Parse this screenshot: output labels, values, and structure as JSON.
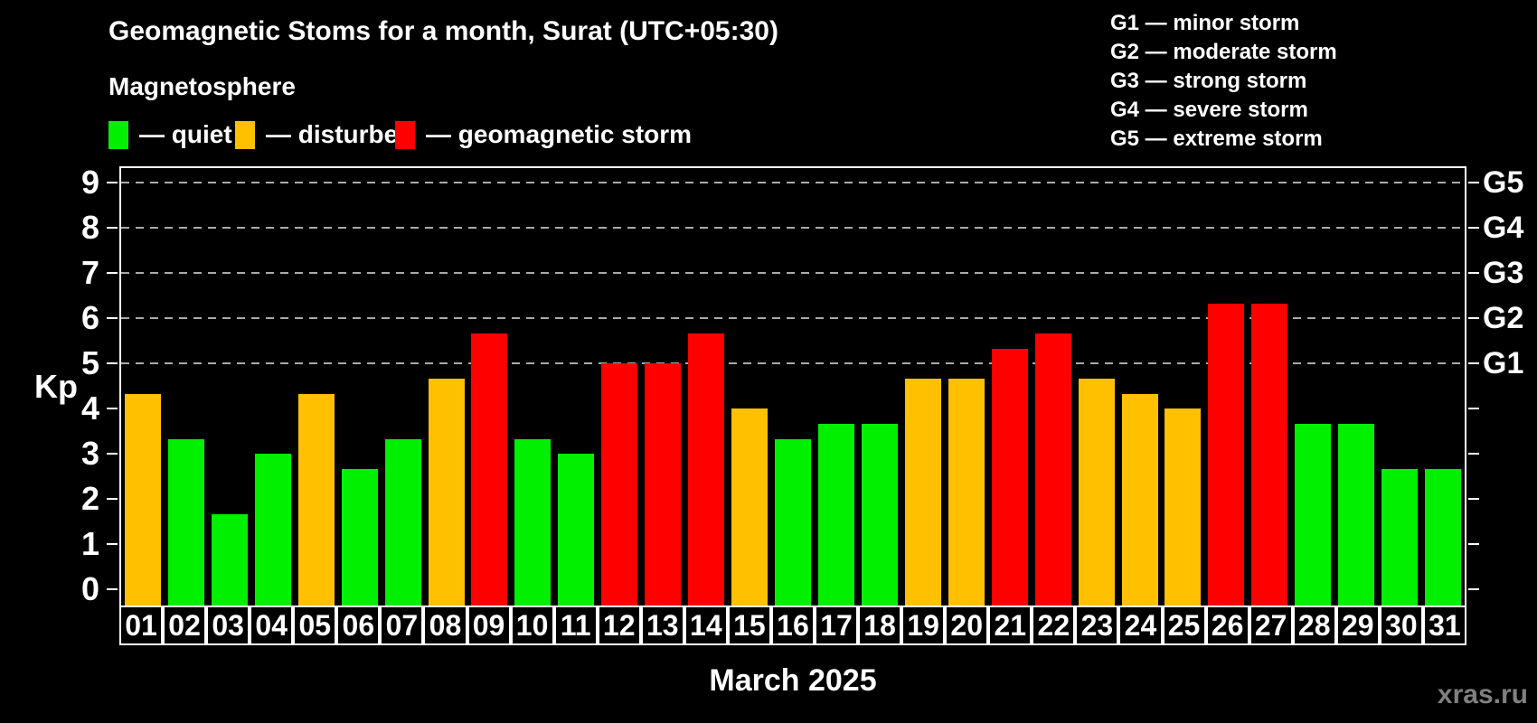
{
  "header": {
    "title": "Geomagnetic Stoms for a month, Surat (UTC+05:30)",
    "subtitle": "Magnetosphere"
  },
  "legend": {
    "items": [
      {
        "name": "quiet",
        "label": "— quiet",
        "color": "#00f000"
      },
      {
        "name": "disturbed",
        "label": "— disturbed",
        "color": "#ffc000"
      },
      {
        "name": "storm",
        "label": "— geomagnetic storm",
        "color": "#ff0000"
      }
    ]
  },
  "storm_scale_legend": {
    "items": [
      "G1 — minor storm",
      "G2 — moderate storm",
      "G3 — strong storm",
      "G4 — severe storm",
      "G5 — extreme storm"
    ]
  },
  "footer": {
    "month_label": "March 2025",
    "watermark": "xras.ru"
  },
  "chart_data": {
    "type": "bar",
    "title": "Geomagnetic Stoms for a month, Surat (UTC+05:30)",
    "ylabel": "Kp",
    "xlabel": "March 2025",
    "ylim": [
      0,
      9.4
    ],
    "y_ticks": [
      0,
      1,
      2,
      3,
      4,
      5,
      6,
      7,
      8,
      9
    ],
    "gridlines_at": [
      5,
      6,
      7,
      8,
      9
    ],
    "grid": "dashed horizontal lines at storm levels G1–G5 only",
    "legend_position": "top-left",
    "right_axis_labels": [
      {
        "kp": 5,
        "label": "G1"
      },
      {
        "kp": 6,
        "label": "G2"
      },
      {
        "kp": 7,
        "label": "G3"
      },
      {
        "kp": 8,
        "label": "G4"
      },
      {
        "kp": 9,
        "label": "G5"
      }
    ],
    "categories": [
      "01",
      "02",
      "03",
      "04",
      "05",
      "06",
      "07",
      "08",
      "09",
      "10",
      "11",
      "12",
      "13",
      "14",
      "15",
      "16",
      "17",
      "18",
      "19",
      "20",
      "21",
      "22",
      "23",
      "24",
      "25",
      "26",
      "27",
      "28",
      "29",
      "30",
      "31"
    ],
    "values": [
      4.33,
      3.33,
      1.67,
      3.0,
      4.33,
      2.67,
      3.33,
      4.67,
      5.67,
      3.33,
      3.0,
      5.0,
      5.0,
      5.67,
      4.0,
      3.33,
      3.67,
      3.67,
      4.67,
      4.67,
      5.33,
      5.67,
      4.67,
      4.33,
      4.0,
      6.33,
      6.33,
      3.67,
      3.67,
      2.67,
      2.67
    ],
    "statuses": [
      "disturbed",
      "quiet",
      "quiet",
      "quiet",
      "disturbed",
      "quiet",
      "quiet",
      "disturbed",
      "storm",
      "quiet",
      "quiet",
      "storm",
      "storm",
      "storm",
      "disturbed",
      "quiet",
      "quiet",
      "quiet",
      "disturbed",
      "disturbed",
      "storm",
      "storm",
      "disturbed",
      "disturbed",
      "disturbed",
      "storm",
      "storm",
      "quiet",
      "quiet",
      "quiet",
      "quiet"
    ],
    "status_colors": {
      "quiet": "#00f000",
      "disturbed": "#ffc000",
      "storm": "#ff0000"
    }
  }
}
